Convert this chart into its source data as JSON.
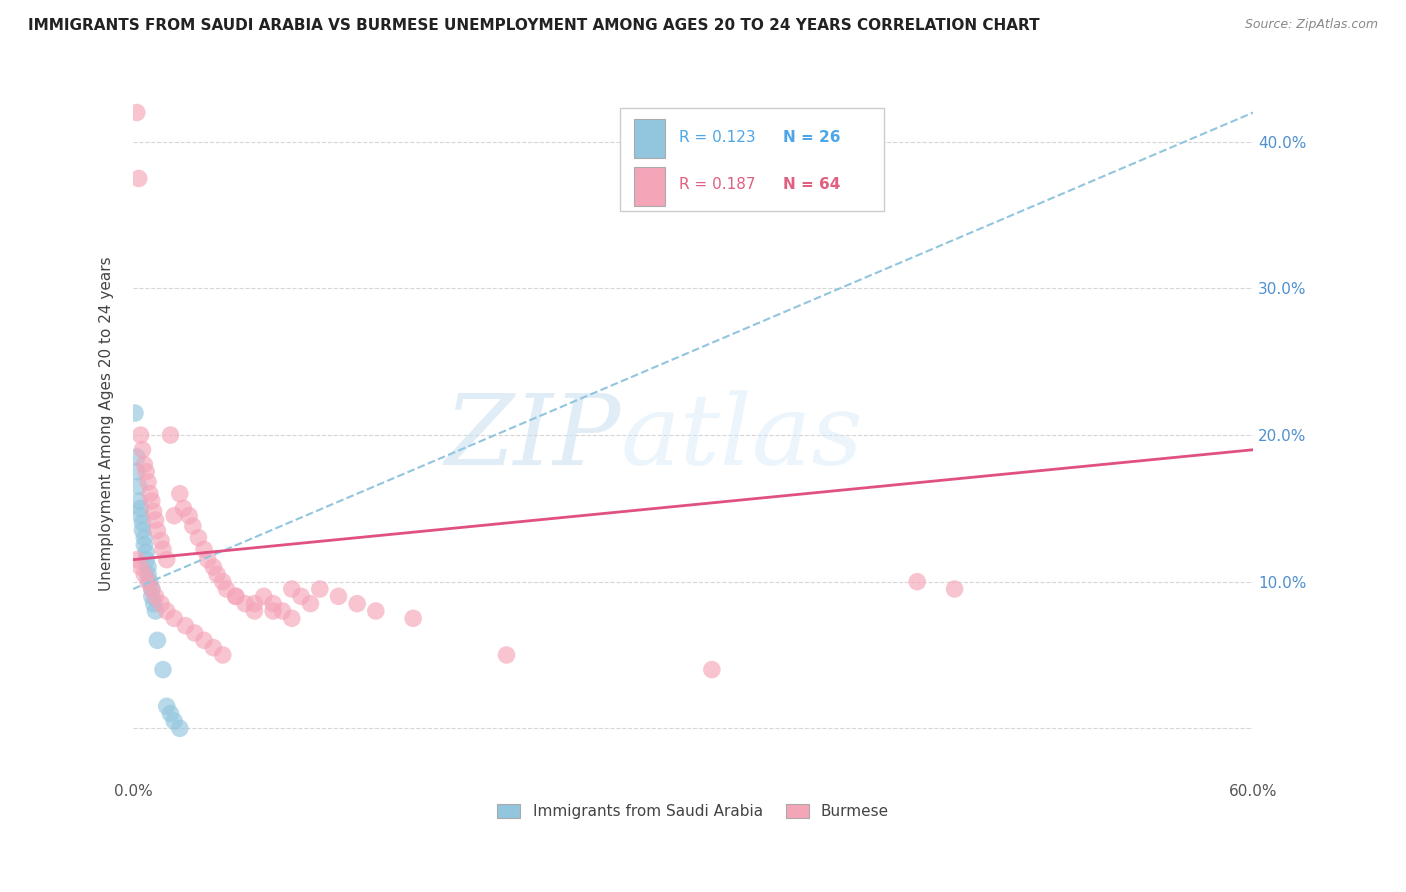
{
  "title": "IMMIGRANTS FROM SAUDI ARABIA VS BURMESE UNEMPLOYMENT AMONG AGES 20 TO 24 YEARS CORRELATION CHART",
  "source": "Source: ZipAtlas.com",
  "ylabel": "Unemployment Among Ages 20 to 24 years",
  "xlim": [
    0.0,
    0.6
  ],
  "ylim": [
    -0.035,
    0.45
  ],
  "color_blue": "#92c5de",
  "color_pink": "#f4a5b8",
  "color_line_blue": "#92c5de",
  "color_line_pink": "#e05080",
  "watermark_zip": "ZIP",
  "watermark_atlas": "atlas",
  "blue_line_x0": 0.0,
  "blue_line_y0": 0.095,
  "blue_line_x1": 0.6,
  "blue_line_y1": 0.42,
  "pink_line_x0": 0.0,
  "pink_line_y0": 0.115,
  "pink_line_x1": 0.6,
  "pink_line_y1": 0.19,
  "blue_x": [
    0.001,
    0.002,
    0.002,
    0.003,
    0.003,
    0.004,
    0.004,
    0.005,
    0.005,
    0.006,
    0.006,
    0.007,
    0.007,
    0.008,
    0.008,
    0.009,
    0.01,
    0.01,
    0.011,
    0.012,
    0.013,
    0.016,
    0.018,
    0.02,
    0.022,
    0.025
  ],
  "blue_y": [
    0.215,
    0.185,
    0.175,
    0.165,
    0.155,
    0.15,
    0.145,
    0.14,
    0.135,
    0.13,
    0.125,
    0.12,
    0.115,
    0.11,
    0.105,
    0.1,
    0.095,
    0.09,
    0.085,
    0.08,
    0.06,
    0.04,
    0.015,
    0.01,
    0.005,
    0.0
  ],
  "pink_x": [
    0.002,
    0.003,
    0.004,
    0.005,
    0.006,
    0.007,
    0.008,
    0.009,
    0.01,
    0.011,
    0.012,
    0.013,
    0.015,
    0.016,
    0.018,
    0.02,
    0.022,
    0.025,
    0.027,
    0.03,
    0.032,
    0.035,
    0.038,
    0.04,
    0.043,
    0.045,
    0.048,
    0.05,
    0.055,
    0.06,
    0.065,
    0.07,
    0.075,
    0.08,
    0.085,
    0.09,
    0.095,
    0.1,
    0.11,
    0.12,
    0.002,
    0.004,
    0.006,
    0.008,
    0.01,
    0.012,
    0.015,
    0.018,
    0.022,
    0.028,
    0.033,
    0.038,
    0.043,
    0.048,
    0.055,
    0.065,
    0.075,
    0.085,
    0.42,
    0.44,
    0.13,
    0.15,
    0.2,
    0.31
  ],
  "pink_y": [
    0.42,
    0.375,
    0.2,
    0.19,
    0.18,
    0.175,
    0.168,
    0.16,
    0.155,
    0.148,
    0.142,
    0.135,
    0.128,
    0.122,
    0.115,
    0.2,
    0.145,
    0.16,
    0.15,
    0.145,
    0.138,
    0.13,
    0.122,
    0.115,
    0.11,
    0.105,
    0.1,
    0.095,
    0.09,
    0.085,
    0.08,
    0.09,
    0.085,
    0.08,
    0.095,
    0.09,
    0.085,
    0.095,
    0.09,
    0.085,
    0.115,
    0.11,
    0.105,
    0.1,
    0.095,
    0.09,
    0.085,
    0.08,
    0.075,
    0.07,
    0.065,
    0.06,
    0.055,
    0.05,
    0.09,
    0.085,
    0.08,
    0.075,
    0.1,
    0.095,
    0.08,
    0.075,
    0.05,
    0.04
  ]
}
